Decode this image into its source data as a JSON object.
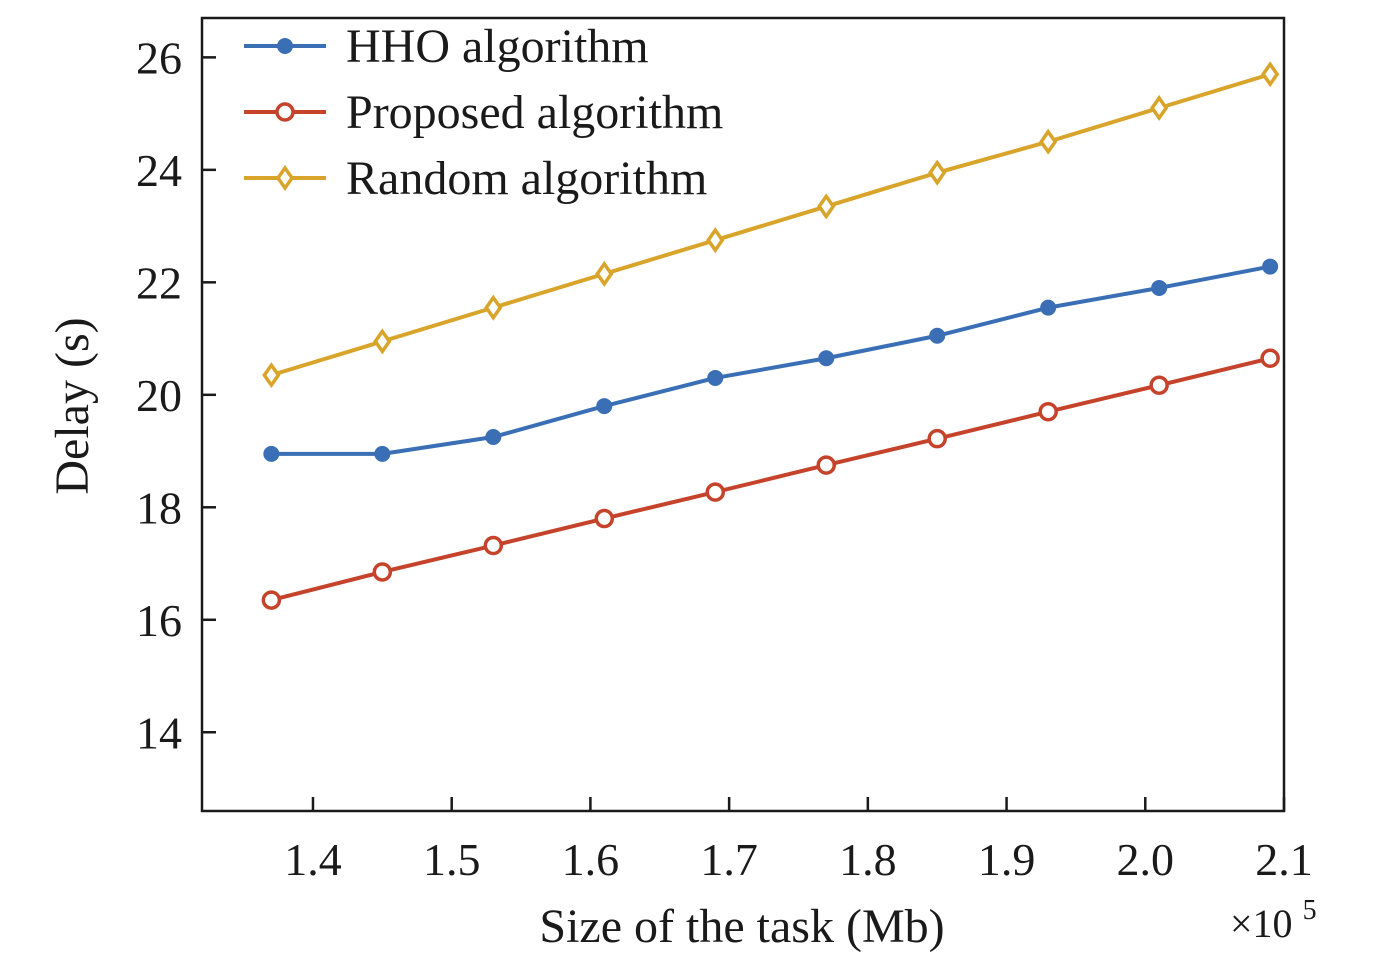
{
  "chart_data": {
    "type": "line",
    "title": "",
    "xlabel": "Size of the task (Mb)",
    "ylabel": "Delay (s)",
    "x_multiplier_text": "×10",
    "x_multiplier_exponent": "5",
    "xlim": [
      1.32,
      2.1
    ],
    "ylim": [
      12.6,
      26.7
    ],
    "xticks": [
      1.4,
      1.5,
      1.6,
      1.7,
      1.8,
      1.9,
      2.0,
      2.1
    ],
    "xtick_labels": [
      "1.4",
      "1.5",
      "1.6",
      "1.7",
      "1.8",
      "1.9",
      "2.0",
      "2.1"
    ],
    "yticks": [
      14,
      16,
      18,
      20,
      22,
      24,
      26
    ],
    "ytick_labels": [
      "14",
      "16",
      "18",
      "20",
      "22",
      "24",
      "26"
    ],
    "grid": false,
    "legend_position": "top-left",
    "x": [
      1.37,
      1.45,
      1.53,
      1.61,
      1.69,
      1.77,
      1.85,
      1.93,
      2.01,
      2.09
    ],
    "series": [
      {
        "name": "HHO algorithm",
        "color": "#3a6fb5",
        "marker": "filled-circle",
        "values": [
          18.95,
          18.95,
          19.25,
          19.8,
          20.3,
          20.65,
          21.05,
          21.55,
          21.9,
          22.28
        ]
      },
      {
        "name": "Proposed algorithm",
        "color": "#c5432a",
        "marker": "open-circle",
        "values": [
          16.35,
          16.85,
          17.32,
          17.8,
          18.27,
          18.75,
          19.22,
          19.7,
          20.17,
          20.65
        ]
      },
      {
        "name": "Random algorithm",
        "color": "#d9a42a",
        "marker": "open-diamond",
        "values": [
          20.35,
          20.95,
          21.55,
          22.15,
          22.75,
          23.35,
          23.95,
          24.5,
          25.1,
          25.7
        ]
      }
    ]
  }
}
